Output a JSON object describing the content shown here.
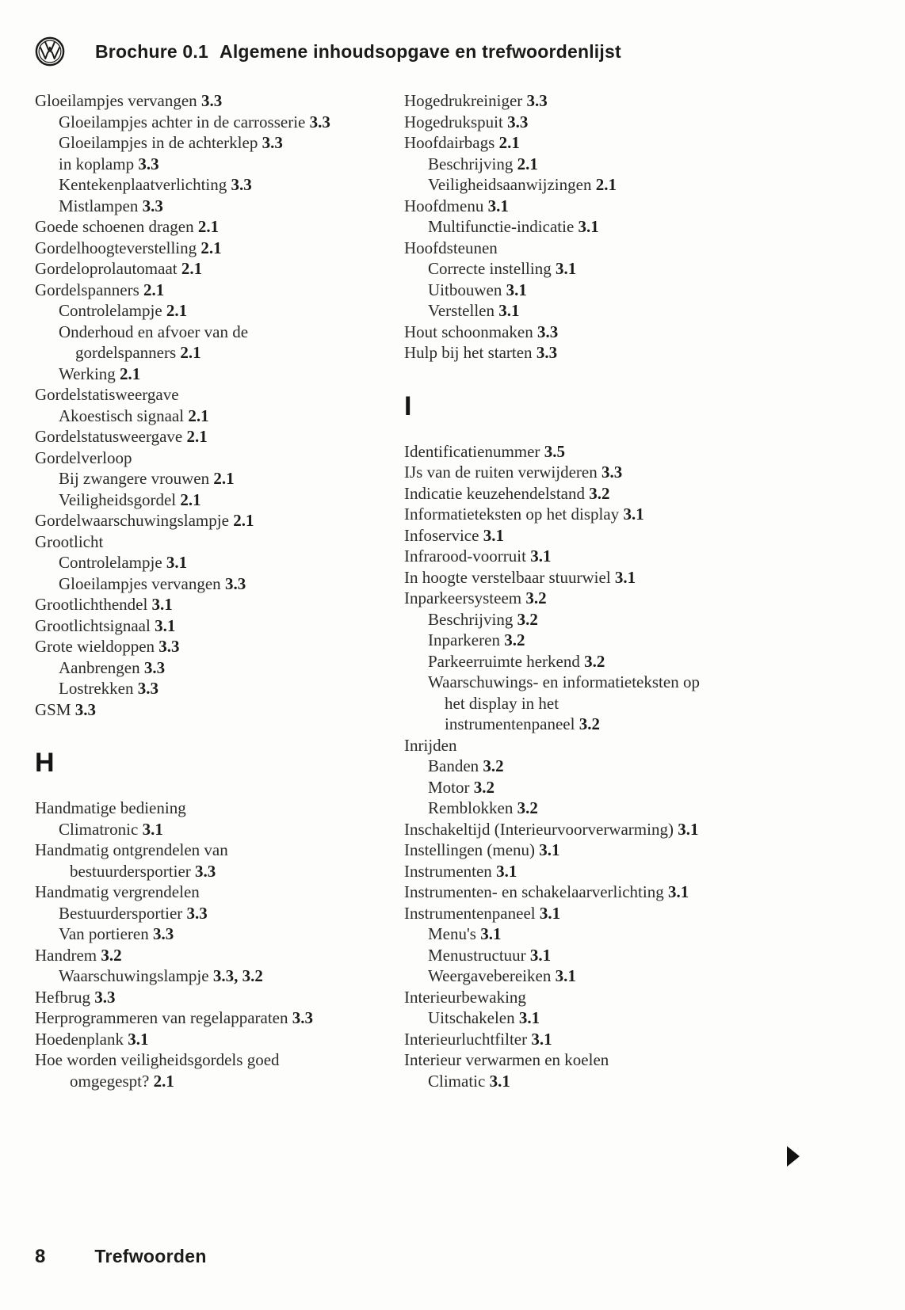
{
  "header": {
    "brand": "VW",
    "title_part1": "Brochure 0.1",
    "title_part2": "Algemene inhoudsopgave en trefwoordenlijst"
  },
  "footer": {
    "page_number": "8",
    "label": "Trefwoorden"
  },
  "pagination": {
    "next_marker": "▶"
  },
  "ink_color": "#222220",
  "columns": [
    {
      "side": "left",
      "items": [
        {
          "type": "entry",
          "level": 0,
          "text": "Gloeilampjes vervangen",
          "num": "3.3"
        },
        {
          "type": "entry",
          "level": 1,
          "text": "Gloeilampjes achter in de carrosserie",
          "num": "3.3"
        },
        {
          "type": "entry",
          "level": 1,
          "text": "Gloeilampjes in de achterklep",
          "num": "3.3"
        },
        {
          "type": "entry",
          "level": 1,
          "text": "in koplamp",
          "num": "3.3"
        },
        {
          "type": "entry",
          "level": 1,
          "text": "Kentekenplaatverlichting",
          "num": "3.3"
        },
        {
          "type": "entry",
          "level": 1,
          "text": "Mistlampen",
          "num": "3.3"
        },
        {
          "type": "entry",
          "level": 0,
          "text": "Goede schoenen dragen",
          "num": "2.1"
        },
        {
          "type": "entry",
          "level": 0,
          "text": "Gordelhoogteverstelling",
          "num": "2.1"
        },
        {
          "type": "entry",
          "level": 0,
          "text": "Gordeloprolautomaat",
          "num": "2.1"
        },
        {
          "type": "entry",
          "level": 0,
          "text": "Gordelspanners",
          "num": "2.1"
        },
        {
          "type": "entry",
          "level": 1,
          "text": "Controlelampje",
          "num": "2.1"
        },
        {
          "type": "entry",
          "level": 1,
          "text": "Onderhoud en afvoer van de\ngordelspanners",
          "num": "2.1"
        },
        {
          "type": "entry",
          "level": 1,
          "text": "Werking",
          "num": "2.1"
        },
        {
          "type": "entry",
          "level": 0,
          "text": "Gordelstatisweergave",
          "num": null
        },
        {
          "type": "entry",
          "level": 1,
          "text": "Akoestisch signaal",
          "num": "2.1"
        },
        {
          "type": "entry",
          "level": 0,
          "text": "Gordelstatusweergave",
          "num": "2.1"
        },
        {
          "type": "entry",
          "level": 0,
          "text": "Gordelverloop",
          "num": null
        },
        {
          "type": "entry",
          "level": 1,
          "text": "Bij zwangere vrouwen",
          "num": "2.1"
        },
        {
          "type": "entry",
          "level": 1,
          "text": "Veiligheidsgordel",
          "num": "2.1"
        },
        {
          "type": "entry",
          "level": 0,
          "text": "Gordelwaarschuwingslampje",
          "num": "2.1"
        },
        {
          "type": "entry",
          "level": 0,
          "text": "Grootlicht",
          "num": null
        },
        {
          "type": "entry",
          "level": 1,
          "text": "Controlelampje",
          "num": "3.1"
        },
        {
          "type": "entry",
          "level": 1,
          "text": "Gloeilampjes vervangen",
          "num": "3.3"
        },
        {
          "type": "entry",
          "level": 0,
          "text": "Grootlichthendel",
          "num": "3.1"
        },
        {
          "type": "entry",
          "level": 0,
          "text": "Grootlichtsignaal",
          "num": "3.1"
        },
        {
          "type": "entry",
          "level": 0,
          "text": "Grote wieldoppen",
          "num": "3.3"
        },
        {
          "type": "entry",
          "level": 1,
          "text": "Aanbrengen",
          "num": "3.3"
        },
        {
          "type": "entry",
          "level": 1,
          "text": "Lostrekken",
          "num": "3.3"
        },
        {
          "type": "entry",
          "level": 0,
          "text": "GSM",
          "num": "3.3"
        },
        {
          "type": "letter",
          "text": "H"
        },
        {
          "type": "entry",
          "level": 0,
          "text": "Handmatige bediening",
          "num": null
        },
        {
          "type": "entry",
          "level": 1,
          "text": "Climatronic",
          "num": "3.1"
        },
        {
          "type": "entry",
          "level": 0,
          "text": "Handmatig ontgrendelen van\nbestuurdersportier",
          "num": "3.3"
        },
        {
          "type": "entry",
          "level": 0,
          "text": "Handmatig vergrendelen",
          "num": null
        },
        {
          "type": "entry",
          "level": 1,
          "text": "Bestuurdersportier",
          "num": "3.3"
        },
        {
          "type": "entry",
          "level": 1,
          "text": "Van portieren",
          "num": "3.3"
        },
        {
          "type": "entry",
          "level": 0,
          "text": "Handrem",
          "num": "3.2"
        },
        {
          "type": "entry",
          "level": 1,
          "text": "Waarschuwingslampje",
          "num": "3.3, 3.2"
        },
        {
          "type": "entry",
          "level": 0,
          "text": "Hefbrug",
          "num": "3.3"
        },
        {
          "type": "entry",
          "level": 0,
          "text": "Herprogrammeren van regelapparaten",
          "num": "3.3"
        },
        {
          "type": "entry",
          "level": 0,
          "text": "Hoedenplank",
          "num": "3.1"
        },
        {
          "type": "entry",
          "level": 0,
          "text": "Hoe worden veiligheidsgordels goed\nomgegespt?",
          "num": "2.1"
        }
      ]
    },
    {
      "side": "right",
      "items": [
        {
          "type": "entry",
          "level": 0,
          "text": "Hogedrukreiniger",
          "num": "3.3"
        },
        {
          "type": "entry",
          "level": 0,
          "text": "Hogedrukspuit",
          "num": "3.3"
        },
        {
          "type": "entry",
          "level": 0,
          "text": "Hoofdairbags",
          "num": "2.1"
        },
        {
          "type": "entry",
          "level": 1,
          "text": "Beschrijving",
          "num": "2.1"
        },
        {
          "type": "entry",
          "level": 1,
          "text": "Veiligheidsaanwijzingen",
          "num": "2.1"
        },
        {
          "type": "entry",
          "level": 0,
          "text": "Hoofdmenu",
          "num": "3.1"
        },
        {
          "type": "entry",
          "level": 1,
          "text": "Multifunctie-indicatie",
          "num": "3.1"
        },
        {
          "type": "entry",
          "level": 0,
          "text": "Hoofdsteunen",
          "num": null
        },
        {
          "type": "entry",
          "level": 1,
          "text": "Correcte instelling",
          "num": "3.1"
        },
        {
          "type": "entry",
          "level": 1,
          "text": "Uitbouwen",
          "num": "3.1"
        },
        {
          "type": "entry",
          "level": 1,
          "text": "Verstellen",
          "num": "3.1"
        },
        {
          "type": "entry",
          "level": 0,
          "text": "Hout schoonmaken",
          "num": "3.3"
        },
        {
          "type": "entry",
          "level": 0,
          "text": "Hulp bij het starten",
          "num": "3.3"
        },
        {
          "type": "letter",
          "text": "I"
        },
        {
          "type": "entry",
          "level": 0,
          "text": "Identificatienummer",
          "num": "3.5"
        },
        {
          "type": "entry",
          "level": 0,
          "text": "IJs van de ruiten verwijderen",
          "num": "3.3"
        },
        {
          "type": "entry",
          "level": 0,
          "text": "Indicatie keuzehendelstand",
          "num": "3.2"
        },
        {
          "type": "entry",
          "level": 0,
          "text": "Informatieteksten op het display",
          "num": "3.1"
        },
        {
          "type": "entry",
          "level": 0,
          "text": "Infoservice",
          "num": "3.1"
        },
        {
          "type": "entry",
          "level": 0,
          "text": "Infrarood-voorruit",
          "num": "3.1"
        },
        {
          "type": "entry",
          "level": 0,
          "text": "In hoogte verstelbaar stuurwiel",
          "num": "3.1"
        },
        {
          "type": "entry",
          "level": 0,
          "text": "Inparkeersysteem",
          "num": "3.2"
        },
        {
          "type": "entry",
          "level": 1,
          "text": "Beschrijving",
          "num": "3.2"
        },
        {
          "type": "entry",
          "level": 1,
          "text": "Inparkeren",
          "num": "3.2"
        },
        {
          "type": "entry",
          "level": 1,
          "text": "Parkeerruimte herkend",
          "num": "3.2"
        },
        {
          "type": "entry",
          "level": 1,
          "text": "Waarschuwings- en informatieteksten op\nhet display in het\ninstrumentenpaneel",
          "num": "3.2"
        },
        {
          "type": "entry",
          "level": 0,
          "text": "Inrijden",
          "num": null
        },
        {
          "type": "entry",
          "level": 1,
          "text": "Banden",
          "num": "3.2"
        },
        {
          "type": "entry",
          "level": 1,
          "text": "Motor",
          "num": "3.2"
        },
        {
          "type": "entry",
          "level": 1,
          "text": "Remblokken",
          "num": "3.2"
        },
        {
          "type": "entry",
          "level": 0,
          "text": "Inschakeltijd (Interieurvoorverwarming)",
          "num": "3.1"
        },
        {
          "type": "entry",
          "level": 0,
          "text": "Instellingen (menu)",
          "num": "3.1"
        },
        {
          "type": "entry",
          "level": 0,
          "text": "Instrumenten",
          "num": "3.1"
        },
        {
          "type": "entry",
          "level": 0,
          "text": "Instrumenten- en schakelaarverlichting",
          "num": "3.1"
        },
        {
          "type": "entry",
          "level": 0,
          "text": "Instrumentenpaneel",
          "num": "3.1"
        },
        {
          "type": "entry",
          "level": 1,
          "text": "Menu's",
          "num": "3.1"
        },
        {
          "type": "entry",
          "level": 1,
          "text": "Menustructuur",
          "num": "3.1"
        },
        {
          "type": "entry",
          "level": 1,
          "text": "Weergavebereiken",
          "num": "3.1"
        },
        {
          "type": "entry",
          "level": 0,
          "text": "Interieurbewaking",
          "num": null
        },
        {
          "type": "entry",
          "level": 1,
          "text": "Uitschakelen",
          "num": "3.1"
        },
        {
          "type": "entry",
          "level": 0,
          "text": "Interieurluchtfilter",
          "num": "3.1"
        },
        {
          "type": "entry",
          "level": 0,
          "text": "Interieur verwarmen en koelen",
          "num": null
        },
        {
          "type": "entry",
          "level": 1,
          "text": "Climatic",
          "num": "3.1"
        }
      ]
    }
  ]
}
